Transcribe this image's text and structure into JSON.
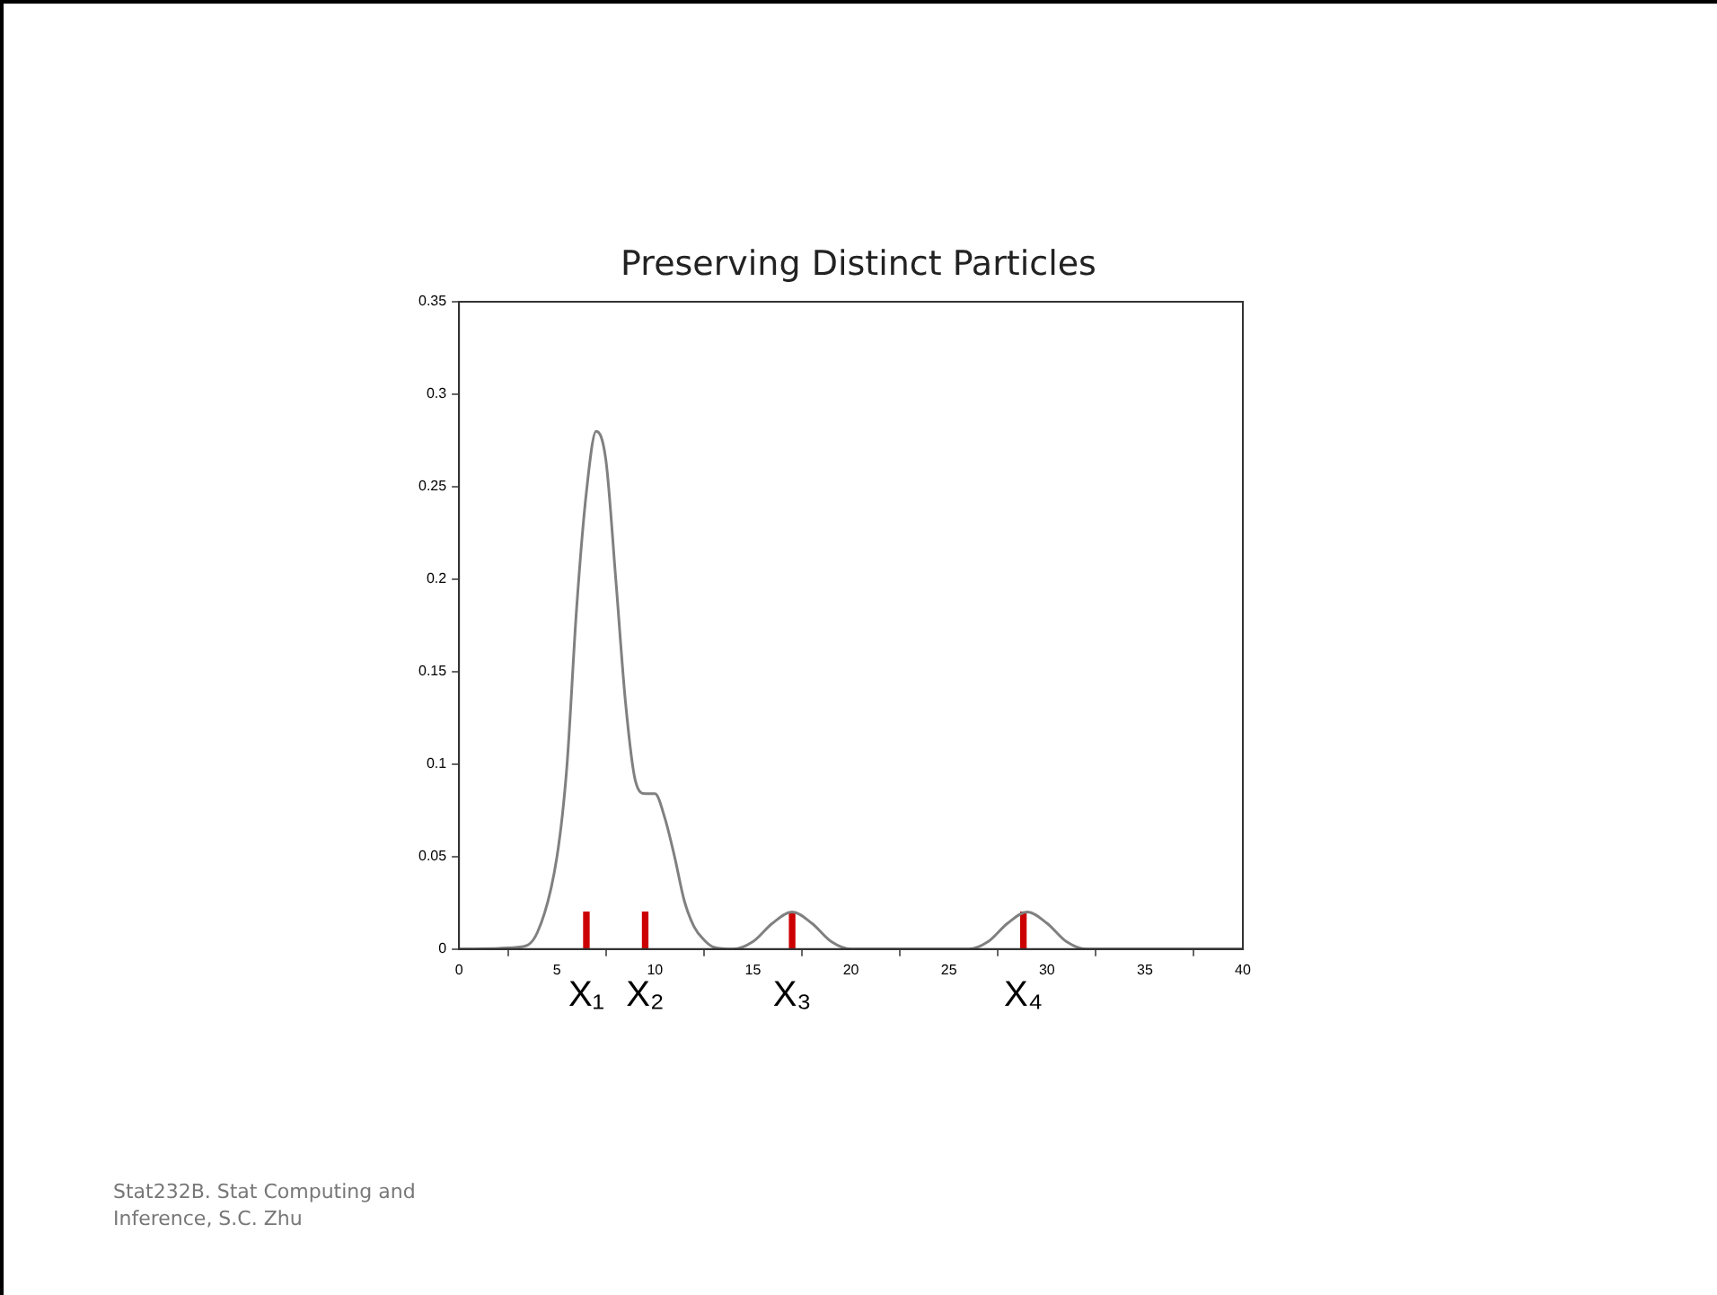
{
  "chart_data": {
    "type": "line",
    "title": "Preserving Distinct Particles",
    "xlim": [
      0,
      40
    ],
    "xticks": [
      0,
      5,
      10,
      15,
      20,
      25,
      30,
      35,
      40
    ],
    "ylim": [
      0,
      0.35
    ],
    "yticks": [
      0,
      0.05,
      0.1,
      0.15,
      0.2,
      0.25,
      0.3,
      0.35
    ],
    "marker": "none",
    "line_style": "solid",
    "series": [
      {
        "color": "#808080",
        "x": [
          0,
          3,
          4,
          5,
          5.5,
          6,
          6.5,
          7,
          7.5,
          8,
          8.5,
          9,
          9.5,
          10,
          10.5,
          11,
          11.5,
          12,
          12.5,
          13,
          14,
          15,
          16,
          17,
          18,
          19,
          20,
          26,
          27,
          28,
          29,
          30,
          31,
          32,
          40
        ],
        "values": [
          0,
          0.001,
          0.009,
          0.05,
          0.098,
          0.184,
          0.247,
          0.28,
          0.264,
          0.2,
          0.133,
          0.091,
          0.084,
          0.084,
          0.071,
          0.05,
          0.026,
          0.012,
          0.005,
          0.001,
          0,
          0.004,
          0.014,
          0.02,
          0.014,
          0.004,
          0,
          0,
          0.004,
          0.014,
          0.02,
          0.014,
          0.004,
          0,
          0
        ]
      },
      {
        "type": "bar",
        "color": "#cc0000",
        "x": [
          6.5,
          9.5,
          17,
          28.8
        ],
        "values": [
          0.02,
          0.02,
          0.02,
          0.02
        ]
      }
    ],
    "annotations": [
      {
        "text": "X₁",
        "x": 6.5,
        "y": 0
      },
      {
        "text": "X₂",
        "x": 9.5,
        "y": 0
      },
      {
        "text": "X₃",
        "x": 17,
        "y": 0
      },
      {
        "text": "X₄",
        "x": 28.8,
        "y": 0
      },
      "Stat232B. Stat Computing and Inference, S.C. Zhu"
    ]
  }
}
